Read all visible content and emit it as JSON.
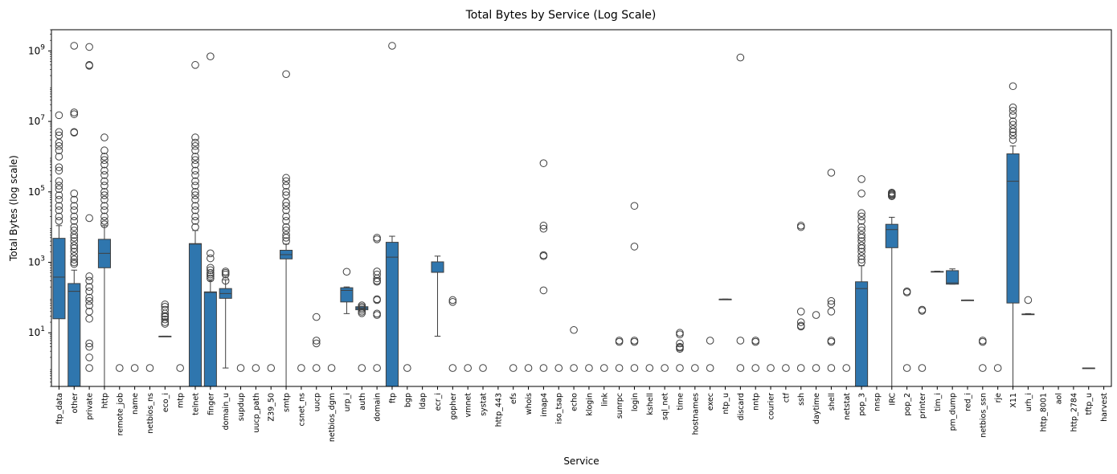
{
  "chart_data": {
    "type": "box",
    "title": "Total Bytes by Service (Log Scale)",
    "xlabel": "Service",
    "ylabel": "Total Bytes (log scale)",
    "y_scale": "log",
    "ylim": [
      0.3,
      4000000000
    ],
    "y_ticks": [
      {
        "value": 10,
        "label": "10",
        "sup": "1"
      },
      {
        "value": 1000,
        "label": "10",
        "sup": "3"
      },
      {
        "value": 100000,
        "label": "10",
        "sup": "5"
      },
      {
        "value": 10000000,
        "label": "10",
        "sup": "7"
      },
      {
        "value": 1000000000,
        "label": "10",
        "sup": "9"
      }
    ],
    "grid": false,
    "box_color": "#2f76ae",
    "services": [
      {
        "name": "ftp_data",
        "box": {
          "q1": 25,
          "median": 380,
          "q3": 4800,
          "whisker_low": 0.3,
          "whisker_high": 11000
        },
        "outliers": [
          15000000,
          5000000,
          4000000,
          2500000,
          2000000,
          1500000,
          1000000,
          500000,
          400000,
          200000,
          150000,
          120000,
          80000,
          60000,
          40000,
          30000,
          20000,
          15000
        ]
      },
      {
        "name": "other",
        "box": {
          "q1": 0.3,
          "median": 150,
          "q3": 250,
          "whisker_low": 0.3,
          "whisker_high": 600
        },
        "outliers": [
          1400000000,
          18000000,
          16000000,
          5000000,
          4800000,
          90000,
          60000,
          40000,
          30000,
          20000,
          15000,
          10000,
          8000,
          6000,
          5000,
          4000,
          3000,
          2500,
          2000,
          1500,
          1200,
          1000,
          900
        ]
      },
      {
        "name": "private",
        "box": null,
        "outliers": [
          1300000000,
          400000000,
          380000000,
          18000,
          400,
          300,
          200,
          150,
          100,
          80,
          60,
          40,
          25,
          5,
          4,
          2,
          1
        ]
      },
      {
        "name": "http",
        "box": {
          "q1": 700,
          "median": 1800,
          "q3": 4500,
          "whisker_low": 0.3,
          "whisker_high": 11000
        },
        "outliers": [
          3500000,
          1500000,
          1000000,
          800000,
          600000,
          400000,
          300000,
          200000,
          150000,
          100000,
          80000,
          60000,
          40000,
          30000,
          20000,
          15000,
          12000
        ]
      },
      {
        "name": "remote_job",
        "box": null,
        "outliers": [
          1
        ]
      },
      {
        "name": "name",
        "box": null,
        "outliers": [
          1
        ]
      },
      {
        "name": "netbios_ns",
        "box": null,
        "outliers": [
          1
        ]
      },
      {
        "name": "eco_i",
        "box": {
          "q1": 8,
          "median": 8,
          "q3": 8,
          "whisker_low": 8,
          "whisker_high": 8
        },
        "outliers": [
          64,
          55,
          45,
          35,
          30,
          28,
          24,
          20,
          18
        ]
      },
      {
        "name": "mtp",
        "box": null,
        "outliers": [
          1
        ]
      },
      {
        "name": "telnet",
        "box": {
          "q1": 0.3,
          "median": 3300,
          "q3": 3400,
          "whisker_low": 0.3,
          "whisker_high": 8000
        },
        "outliers": [
          400000000,
          3500000,
          2500000,
          2000000,
          1500000,
          1000000,
          800000,
          600000,
          400000,
          300000,
          200000,
          150000,
          100000,
          80000,
          60000,
          40000,
          30000,
          20000,
          15000,
          10000
        ]
      },
      {
        "name": "finger",
        "box": {
          "q1": 0.3,
          "median": 140,
          "q3": 145,
          "whisker_low": 0.3,
          "whisker_high": 300
        },
        "outliers": [
          700000000,
          1800,
          1300,
          700,
          600,
          500,
          450,
          400,
          350
        ]
      },
      {
        "name": "domain_u",
        "box": {
          "q1": 95,
          "median": 130,
          "q3": 180,
          "whisker_low": 1,
          "whisker_high": 320
        },
        "outliers": [
          550,
          500,
          450,
          300
        ]
      },
      {
        "name": "supdup",
        "box": null,
        "outliers": [
          1
        ]
      },
      {
        "name": "uucp_path",
        "box": null,
        "outliers": [
          1
        ]
      },
      {
        "name": "Z39_50",
        "box": null,
        "outliers": [
          1
        ]
      },
      {
        "name": "smtp",
        "box": {
          "q1": 1250,
          "median": 1650,
          "q3": 2200,
          "whisker_low": 0.3,
          "whisker_high": 3300
        },
        "outliers": [
          220000000,
          250000,
          200000,
          150000,
          100000,
          80000,
          50000,
          40000,
          30000,
          20000,
          15000,
          10000,
          8000,
          6000,
          5000,
          4000
        ]
      },
      {
        "name": "csnet_ns",
        "box": null,
        "outliers": [
          1
        ]
      },
      {
        "name": "uucp",
        "box": null,
        "outliers": [
          28,
          6,
          5,
          1
        ]
      },
      {
        "name": "netbios_dgm",
        "box": null,
        "outliers": [
          1
        ]
      },
      {
        "name": "urp_i",
        "box": {
          "q1": 75,
          "median": 160,
          "q3": 190,
          "whisker_low": 35,
          "whisker_high": 200
        },
        "outliers": [
          540
        ]
      },
      {
        "name": "auth",
        "box": {
          "q1": 45,
          "median": 50,
          "q3": 55,
          "whisker_low": 45,
          "whisker_high": 55
        },
        "outliers": [
          60,
          55,
          50,
          45,
          40,
          36,
          1
        ]
      },
      {
        "name": "domain",
        "box": null,
        "outliers": [
          5000,
          4500,
          550,
          450,
          350,
          300,
          280,
          90,
          85,
          35,
          32,
          1
        ]
      },
      {
        "name": "ftp",
        "box": {
          "q1": 0.3,
          "median": 1400,
          "q3": 3700,
          "whisker_low": 0.3,
          "whisker_high": 5500
        },
        "outliers": [
          1400000000
        ]
      },
      {
        "name": "bgp",
        "box": null,
        "outliers": [
          1
        ]
      },
      {
        "name": "ldap",
        "box": null,
        "outliers": []
      },
      {
        "name": "ecr_i",
        "box": {
          "q1": 520,
          "median": 520,
          "q3": 1030,
          "whisker_low": 8,
          "whisker_high": 1500
        },
        "outliers": []
      },
      {
        "name": "gopher",
        "box": null,
        "outliers": [
          85,
          75,
          1
        ]
      },
      {
        "name": "vmnet",
        "box": null,
        "outliers": [
          1
        ]
      },
      {
        "name": "systat",
        "box": null,
        "outliers": [
          1
        ]
      },
      {
        "name": "http_443",
        "box": null,
        "outliers": []
      },
      {
        "name": "efs",
        "box": null,
        "outliers": [
          1
        ]
      },
      {
        "name": "whois",
        "box": null,
        "outliers": [
          1
        ]
      },
      {
        "name": "imap4",
        "box": null,
        "outliers": [
          650000,
          11000,
          9000,
          1600,
          1500,
          160,
          1
        ]
      },
      {
        "name": "iso_tsap",
        "box": null,
        "outliers": [
          1
        ]
      },
      {
        "name": "echo",
        "box": null,
        "outliers": [
          12,
          1
        ]
      },
      {
        "name": "klogin",
        "box": null,
        "outliers": [
          1
        ]
      },
      {
        "name": "link",
        "box": null,
        "outliers": [
          1
        ]
      },
      {
        "name": "sunrpc",
        "box": null,
        "outliers": [
          6,
          5.5,
          1
        ]
      },
      {
        "name": "login",
        "box": null,
        "outliers": [
          40000,
          2800,
          6,
          5.5,
          1
        ]
      },
      {
        "name": "kshell",
        "box": null,
        "outliers": [
          1
        ]
      },
      {
        "name": "sql_net",
        "box": null,
        "outliers": [
          1
        ]
      },
      {
        "name": "time",
        "box": null,
        "outliers": [
          10,
          9,
          5,
          4,
          3.8,
          3.5,
          1
        ]
      },
      {
        "name": "hostnames",
        "box": null,
        "outliers": [
          1
        ]
      },
      {
        "name": "exec",
        "box": null,
        "outliers": [
          6,
          1
        ]
      },
      {
        "name": "ntp_u",
        "box": {
          "q1": 90,
          "median": 90,
          "q3": 90,
          "whisker_low": 90,
          "whisker_high": 90
        },
        "outliers": []
      },
      {
        "name": "discard",
        "box": null,
        "outliers": [
          650000000,
          6,
          1
        ]
      },
      {
        "name": "nntp",
        "box": null,
        "outliers": [
          6,
          5.5,
          1
        ]
      },
      {
        "name": "courier",
        "box": null,
        "outliers": [
          1
        ]
      },
      {
        "name": "ctf",
        "box": null,
        "outliers": [
          1
        ]
      },
      {
        "name": "ssh",
        "box": null,
        "outliers": [
          11000,
          10000,
          40,
          20,
          16,
          15,
          1
        ]
      },
      {
        "name": "daytime",
        "box": null,
        "outliers": [
          32,
          1
        ]
      },
      {
        "name": "shell",
        "box": null,
        "outliers": [
          350000,
          80,
          65,
          40,
          6,
          5.5,
          1
        ]
      },
      {
        "name": "netstat",
        "box": null,
        "outliers": [
          1
        ]
      },
      {
        "name": "pop_3",
        "box": {
          "q1": 0.3,
          "median": 180,
          "q3": 280,
          "whisker_low": 0.3,
          "whisker_high": 800
        },
        "outliers": [
          230000,
          90000,
          25000,
          20000,
          15000,
          10000,
          8000,
          6000,
          5000,
          4000,
          3000,
          2500,
          2000,
          1500,
          1200,
          1000
        ]
      },
      {
        "name": "nnsp",
        "box": null,
        "outliers": []
      },
      {
        "name": "IRC",
        "box": {
          "q1": 2600,
          "median": 8500,
          "q3": 12000,
          "whisker_low": 0.3,
          "whisker_high": 19000
        },
        "outliers": [
          95000,
          90000,
          85000,
          80000,
          75000
        ]
      },
      {
        "name": "pop_2",
        "box": null,
        "outliers": [
          150,
          140,
          1
        ]
      },
      {
        "name": "printer",
        "box": null,
        "outliers": [
          45,
          42,
          1
        ]
      },
      {
        "name": "tim_i",
        "box": {
          "q1": 540,
          "median": 540,
          "q3": 550,
          "whisker_low": 540,
          "whisker_high": 560
        },
        "outliers": []
      },
      {
        "name": "pm_dump",
        "box": {
          "q1": 240,
          "median": 260,
          "q3": 580,
          "whisker_low": 240,
          "whisker_high": 650
        },
        "outliers": []
      },
      {
        "name": "red_i",
        "box": {
          "q1": 85,
          "median": 85,
          "q3": 85,
          "whisker_low": 85,
          "whisker_high": 85
        },
        "outliers": []
      },
      {
        "name": "netbios_ssn",
        "box": null,
        "outliers": [
          6,
          5.5,
          1
        ]
      },
      {
        "name": "rje",
        "box": null,
        "outliers": [
          1
        ]
      },
      {
        "name": "X11",
        "box": {
          "q1": 70,
          "median": 200000,
          "q3": 1200000,
          "whisker_low": 0.3,
          "whisker_high": 2000000
        },
        "outliers": [
          100000000,
          25000000,
          20000000,
          15000000,
          10000000,
          8000000,
          6000000,
          5000000,
          4000000,
          3000000
        ]
      },
      {
        "name": "urh_i",
        "box": {
          "q1": 33,
          "median": 34,
          "q3": 34,
          "whisker_low": 33,
          "whisker_high": 35
        },
        "outliers": [
          85
        ]
      },
      {
        "name": "http_8001",
        "box": null,
        "outliers": []
      },
      {
        "name": "aol",
        "box": null,
        "outliers": []
      },
      {
        "name": "http_2784",
        "box": null,
        "outliers": []
      },
      {
        "name": "tftp_u",
        "box": {
          "q1": 1,
          "median": 1,
          "q3": 1,
          "whisker_low": 1,
          "whisker_high": 1
        },
        "outliers": []
      },
      {
        "name": "harvest",
        "box": null,
        "outliers": []
      }
    ]
  }
}
